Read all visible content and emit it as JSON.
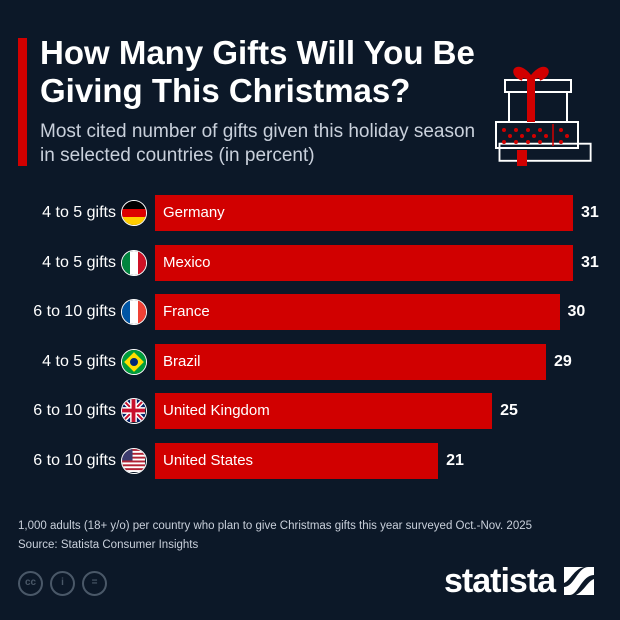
{
  "header": {
    "title": "How Many Gifts Will You Be Giving This Christmas?",
    "subtitle": "Most cited number of gifts given this holiday season in selected countries (in percent)",
    "icon": "gift-stack-icon"
  },
  "chart_data": {
    "type": "bar",
    "orientation": "horizontal",
    "categories": [
      "Germany",
      "Mexico",
      "France",
      "Brazil",
      "United Kingdom",
      "United States"
    ],
    "labels": [
      "4 to 5 gifts",
      "4 to 5 gifts",
      "6 to 10 gifts",
      "4 to 5 gifts",
      "6 to 10 gifts",
      "6 to 10 gifts"
    ],
    "values": [
      31,
      31,
      30,
      29,
      25,
      21
    ],
    "xlim": [
      0,
      31
    ],
    "grid": false,
    "color": "#d10000",
    "xlabel": "",
    "ylabel": ""
  },
  "footer": {
    "note": "1,000 adults (18+ y/o) per country who plan to give Christmas gifts this year surveyed Oct.-Nov. 2025",
    "source": "Source: Statista Consumer Insights",
    "logo": "statista",
    "license_icons": [
      "cc-icon",
      "by-icon",
      "nd-icon"
    ]
  },
  "colors": {
    "background": "#0c1828",
    "accent": "#d10000"
  }
}
